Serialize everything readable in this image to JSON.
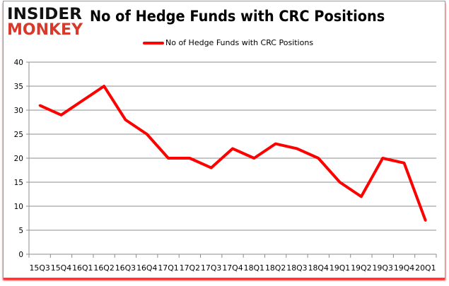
{
  "logo": {
    "line1": "INSIDER",
    "line2": "MONKEY"
  },
  "chart_data": {
    "type": "line",
    "title": "No of Hedge Funds with CRC Positions",
    "categories": [
      "15Q3",
      "15Q4",
      "16Q1",
      "16Q2",
      "16Q3",
      "16Q4",
      "17Q1",
      "17Q2",
      "17Q3",
      "17Q4",
      "18Q1",
      "18Q2",
      "18Q3",
      "18Q4",
      "19Q1",
      "19Q2",
      "19Q3",
      "19Q4",
      "20Q1"
    ],
    "series": [
      {
        "name": "No of Hedge Funds with CRC Positions",
        "values": [
          31,
          29,
          32,
          35,
          28,
          25,
          20,
          20,
          18,
          22,
          20,
          23,
          22,
          20,
          15,
          12,
          20,
          19,
          7
        ],
        "color": "#ff0000"
      }
    ],
    "yticks": [
      0,
      5,
      10,
      15,
      20,
      25,
      30,
      35,
      40
    ],
    "ylim": [
      0,
      40
    ],
    "grid": true,
    "legend": "top-center"
  }
}
